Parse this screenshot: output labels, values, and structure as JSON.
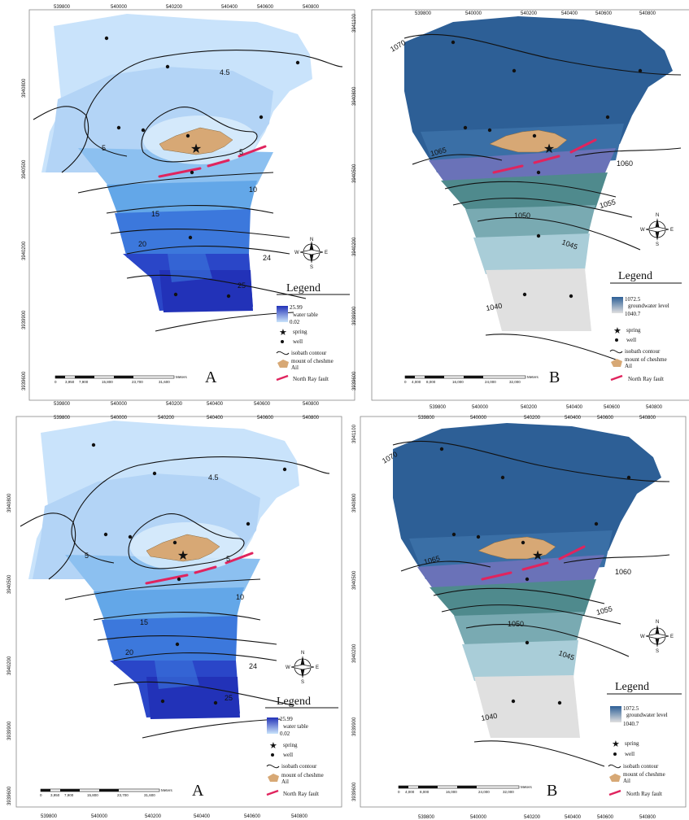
{
  "panels": [
    {
      "id": "A-top",
      "letter": "A",
      "kind": "water_table",
      "easting_ticks": [
        "539800",
        "540000",
        "540200",
        "540400",
        "540600",
        "540800"
      ],
      "northing_ticks": [
        "3940800",
        "3940500",
        "3940200",
        "3939900",
        "3939600"
      ],
      "contour_labels": [
        "4.5",
        "5",
        "5",
        "10",
        "15",
        "20",
        "24",
        "25"
      ],
      "compass": {
        "n": "N",
        "s": "S",
        "e": "E",
        "w": "W"
      },
      "legend": {
        "title": "Legend",
        "ramp_max": "25.99",
        "ramp_caption": "water table",
        "ramp_min": "0.02",
        "spring": "spring",
        "well": "well",
        "contour": "isobath contour",
        "mount_1": "mount of cheshme",
        "mount_2": "Ail",
        "fault": "North Ray fault"
      },
      "scalebar": {
        "labels": [
          "0",
          "3,950",
          "7,900",
          "15,800",
          "23,700",
          "31,600"
        ],
        "unit": "Meters"
      }
    },
    {
      "id": "B-top",
      "letter": "B",
      "kind": "groundwater",
      "easting_ticks": [
        "539800",
        "540000",
        "540200",
        "540400",
        "540600",
        "540800"
      ],
      "northing_ticks": [
        "3941100",
        "3940800",
        "3940500",
        "3940200",
        "3939900",
        "3939600"
      ],
      "contour_labels": [
        "1070",
        "1065",
        "1060",
        "1055",
        "1050",
        "1045",
        "1040"
      ],
      "compass": {
        "n": "N",
        "s": "S",
        "e": "E",
        "w": "W"
      },
      "legend": {
        "title": "Legend",
        "ramp_max": "1072.5",
        "ramp_caption": "groundwater level",
        "ramp_min": "1040.7",
        "spring": "spring",
        "well": "well",
        "contour": "isobath contour",
        "mount_1": "mount of cheshme",
        "mount_2": "Ail",
        "fault": "North Ray fault"
      },
      "scalebar": {
        "labels": [
          "0",
          "4,000",
          "8,000",
          "16,000",
          "24,000",
          "32,000"
        ],
        "unit": "Meters"
      }
    },
    {
      "id": "A-bottom",
      "letter": "A",
      "kind": "water_table",
      "easting_ticks": [
        "539800",
        "540000",
        "540200",
        "540400",
        "540600",
        "540800"
      ],
      "northing_ticks": [
        "3940800",
        "3940500",
        "3940200",
        "3939900",
        "3939600"
      ],
      "contour_labels": [
        "4.5",
        "5",
        "5",
        "10",
        "15",
        "20",
        "24",
        "25"
      ],
      "compass": {
        "n": "N",
        "s": "S",
        "e": "E",
        "w": "W"
      },
      "legend": {
        "title": "Legend",
        "ramp_max": "25.99",
        "ramp_caption": "water table",
        "ramp_min": "0.02",
        "spring": "spring",
        "well": "well",
        "contour": "isobath contour",
        "mount_1": "mount of cheshme",
        "mount_2": "Ail",
        "fault": "North Ray fault"
      },
      "scalebar": {
        "labels": [
          "0",
          "3,950",
          "7,900",
          "15,800",
          "23,700",
          "31,600"
        ],
        "unit": "Meters"
      }
    },
    {
      "id": "B-bottom",
      "letter": "B",
      "kind": "groundwater",
      "easting_ticks": [
        "539800",
        "540000",
        "540200",
        "540400",
        "540600",
        "540800"
      ],
      "northing_ticks": [
        "3941100",
        "3940800",
        "3940500",
        "3940200",
        "3939900",
        "3939600"
      ],
      "contour_labels": [
        "1070",
        "1065",
        "1060",
        "1055",
        "1050",
        "1045",
        "1040"
      ],
      "compass": {
        "n": "N",
        "s": "S",
        "e": "E",
        "w": "W"
      },
      "legend": {
        "title": "Legend",
        "ramp_max": "1072.5",
        "ramp_caption": "groundwater level",
        "ramp_min": "1040.7",
        "spring": "spring",
        "well": "well",
        "contour": "isobath contour",
        "mount_1": "mount of cheshme",
        "mount_2": "Ail",
        "fault": "North Ray fault"
      },
      "scalebar": {
        "labels": [
          "0",
          "4,000",
          "8,000",
          "16,000",
          "24,000",
          "32,000"
        ],
        "unit": "Meters"
      }
    }
  ],
  "colors": {
    "A_ramp": [
      "#c9e3fb",
      "#b3d4f6",
      "#8cc0f0",
      "#63a7e8",
      "#3c78dc",
      "#2a46c8",
      "#2232b8"
    ],
    "B_ramp": [
      "#2d5f96",
      "#3a6fa6",
      "#6a72b8",
      "#4f8a8d",
      "#79aab2",
      "#a9cdd8",
      "#e0e0e0"
    ],
    "fault": "#e0245e",
    "mount": "#d7a875",
    "contour": "#111111",
    "well": "#111111"
  }
}
